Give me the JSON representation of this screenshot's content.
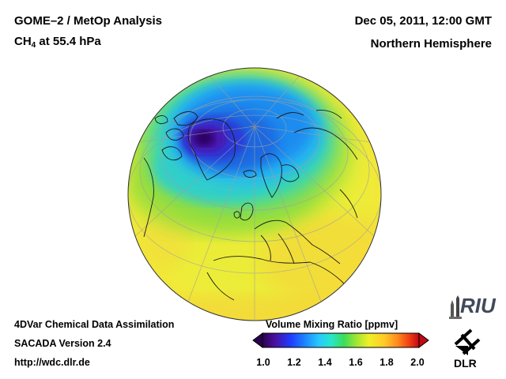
{
  "header": {
    "product_title": "GOME–2 / MetOp Analysis",
    "species_main": "CH",
    "species_sub": "4",
    "species_level": " at 55.4 hPa",
    "datetime": "Dec 05, 2011, 12:00 GMT",
    "region": "Northern Hemisphere"
  },
  "footer": {
    "line1": "4DVar Chemical Data Assimilation",
    "line2": "SACADA Version 2.4",
    "line3": "http://wdc.dlr.de"
  },
  "colorbar": {
    "title": "Volume Mixing Ratio [ppmv]",
    "ticks": [
      "1.0",
      "1.2",
      "1.4",
      "1.6",
      "1.8",
      "2.0"
    ],
    "range": [
      1.0,
      2.0
    ],
    "colors": [
      "#2a0050",
      "#4a10a0",
      "#1e3cff",
      "#1e8cff",
      "#28c8ff",
      "#28e6c8",
      "#3cdc5a",
      "#a0e632",
      "#f0f028",
      "#ffc828",
      "#ff8c1e",
      "#f03c14",
      "#be0a14"
    ]
  },
  "logos": {
    "riu": "RIU",
    "dlr": "DLR"
  },
  "map": {
    "projection": "orthographic",
    "hemisphere": "Northern Hemisphere",
    "min_region": "Greenland / Baffin Bay",
    "min_value_ppmv": 1.0
  }
}
